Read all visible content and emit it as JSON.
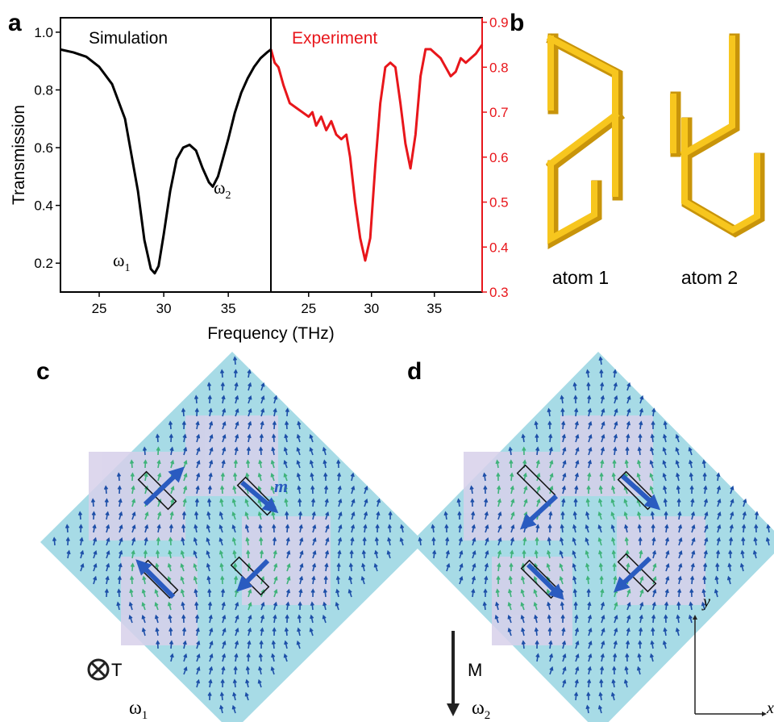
{
  "panel_labels": [
    "a",
    "b",
    "c",
    "d"
  ],
  "chart_data": [
    {
      "type": "line",
      "title": "Simulation",
      "xlabel": "Frequency (THz)",
      "ylabel": "Transmission",
      "x": [
        22,
        23,
        24,
        25,
        26,
        27,
        28,
        28.5,
        29,
        29.3,
        29.6,
        30,
        30.5,
        31,
        31.5,
        32,
        32.5,
        33,
        33.5,
        33.8,
        34.2,
        35,
        35.5,
        36,
        36.5,
        37,
        37.5,
        38,
        38.3
      ],
      "series": [
        {
          "color": "#000000",
          "values": [
            0.94,
            0.93,
            0.915,
            0.88,
            0.82,
            0.7,
            0.45,
            0.28,
            0.18,
            0.165,
            0.19,
            0.3,
            0.45,
            0.56,
            0.6,
            0.61,
            0.59,
            0.53,
            0.48,
            0.465,
            0.5,
            0.63,
            0.72,
            0.79,
            0.84,
            0.88,
            0.91,
            0.93,
            0.94
          ]
        }
      ],
      "xlim": [
        22,
        38.3
      ],
      "ylim": [
        0.1,
        1.05
      ],
      "xticks": [
        25,
        30,
        35
      ],
      "yticks": [
        0.2,
        0.4,
        0.6,
        0.8,
        {
          "value": 1,
          "label": "1.0"
        }
      ],
      "annotations": [
        {
          "symbol": "ω",
          "subscript": "1"
        },
        {
          "symbol": "ω",
          "subscript": "2"
        }
      ]
    },
    {
      "type": "line",
      "title": "Experiment",
      "x": [
        22,
        22.3,
        22.6,
        23,
        23.5,
        24,
        24.5,
        25,
        25.3,
        25.6,
        26,
        26.4,
        26.8,
        27.2,
        27.6,
        28,
        28.3,
        28.7,
        29.1,
        29.5,
        29.9,
        30.3,
        30.7,
        31.1,
        31.5,
        31.9,
        32.3,
        32.7,
        33.1,
        33.5,
        33.9,
        34.3,
        34.7,
        35.1,
        35.5,
        35.9,
        36.3,
        36.7,
        37.1,
        37.5,
        37.9,
        38.3,
        38.8
      ],
      "series": [
        {
          "color": "#e8161b",
          "values": [
            0.84,
            0.81,
            0.8,
            0.76,
            0.72,
            0.71,
            0.7,
            0.69,
            0.7,
            0.67,
            0.69,
            0.66,
            0.68,
            0.65,
            0.64,
            0.65,
            0.6,
            0.5,
            0.42,
            0.37,
            0.42,
            0.58,
            0.72,
            0.8,
            0.81,
            0.8,
            0.72,
            0.63,
            0.575,
            0.65,
            0.78,
            0.84,
            0.84,
            0.83,
            0.82,
            0.8,
            0.78,
            0.79,
            0.82,
            0.81,
            0.82,
            0.83,
            0.85
          ]
        }
      ],
      "xlim": [
        22,
        38.8
      ],
      "ylim": [
        0.3,
        0.91
      ],
      "xticks": [
        25,
        30,
        35
      ],
      "yticks": [
        0.3,
        0.4,
        0.5,
        0.6,
        0.7,
        0.8,
        0.9
      ]
    }
  ],
  "atoms": [
    "atom 1",
    "atom 2"
  ],
  "field_maps": [
    {
      "symbol": "ω",
      "subscript": "1",
      "moment_label": "m",
      "source_label": "T"
    },
    {
      "symbol": "ω",
      "subscript": "2",
      "source_label": "M"
    }
  ],
  "axes": {
    "y": "y",
    "x": "x"
  }
}
